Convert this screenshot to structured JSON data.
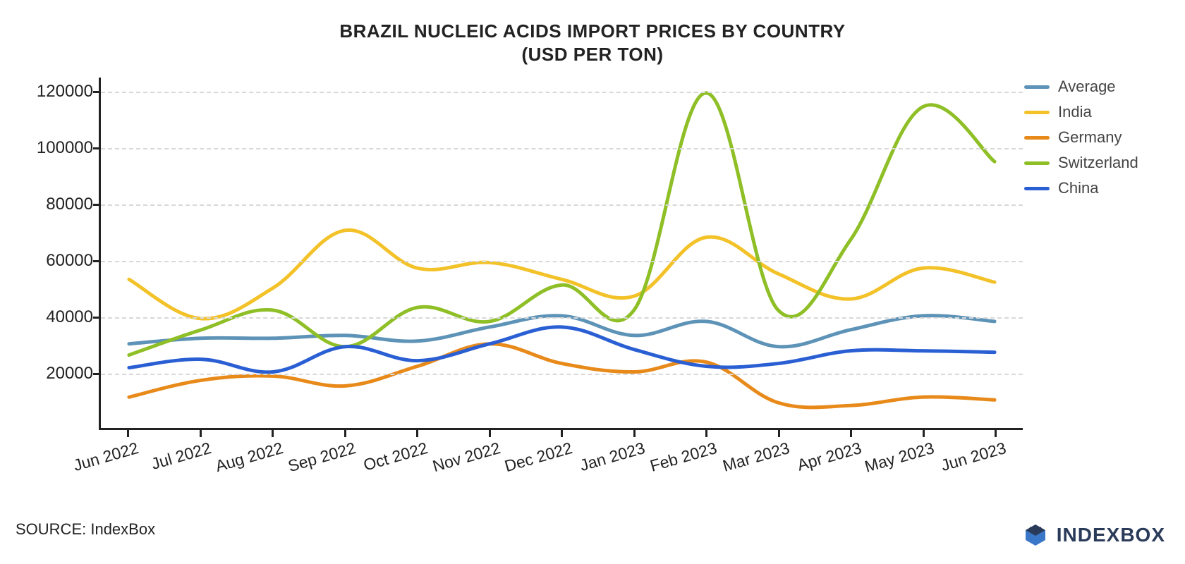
{
  "title_line1": "BRAZIL NUCLEIC ACIDS IMPORT PRICES BY COUNTRY",
  "title_line2": "(USD PER TON)",
  "source_label": "SOURCE: IndexBox",
  "brand_text": "INDEXBOX",
  "chart": {
    "type": "line",
    "background_color": "#ffffff",
    "grid_color": "#d8d8d8",
    "axis_color": "#222222",
    "title_fontsize": 26,
    "label_fontsize": 24,
    "ylim": [
      0,
      125000
    ],
    "yticks": [
      20000,
      40000,
      60000,
      80000,
      100000,
      120000
    ],
    "ytick_labels": [
      "20000",
      "40000",
      "60000",
      "80000",
      "100000",
      "120000"
    ],
    "x_categories": [
      "Jun 2022",
      "Jul 2022",
      "Aug 2022",
      "Sep 2022",
      "Oct 2022",
      "Nov 2022",
      "Dec 2022",
      "Jan 2023",
      "Feb 2023",
      "Mar 2023",
      "Apr 2023",
      "May 2023",
      "Jun 2023"
    ],
    "line_width": 5,
    "series": [
      {
        "name": "Average",
        "color": "#5e93b8",
        "values": [
          30000,
          32000,
          32000,
          33000,
          31000,
          36000,
          40000,
          33000,
          38000,
          29000,
          35000,
          40000,
          38000
        ]
      },
      {
        "name": "India",
        "color": "#f3c128",
        "values": [
          53000,
          39000,
          50000,
          70500,
          57000,
          59000,
          53000,
          47000,
          68000,
          55000,
          46000,
          57000,
          52000
        ]
      },
      {
        "name": "Germany",
        "color": "#e88a1a",
        "values": [
          11000,
          17000,
          18500,
          15000,
          22000,
          30000,
          23000,
          20000,
          23500,
          9000,
          8000,
          11000,
          10000
        ]
      },
      {
        "name": "Switzerland",
        "color": "#8fbf26",
        "values": [
          26000,
          35000,
          42000,
          29000,
          43000,
          38000,
          51000,
          42000,
          119500,
          42000,
          67000,
          114500,
          95000
        ]
      },
      {
        "name": "China",
        "color": "#2a5fd4",
        "values": [
          21500,
          24500,
          20000,
          29000,
          24000,
          30000,
          36000,
          28000,
          22000,
          23000,
          27500,
          27500,
          27000
        ]
      }
    ],
    "legend": {
      "items": [
        "Average",
        "India",
        "Germany",
        "Switzerland",
        "China"
      ],
      "fontsize": 22
    }
  },
  "brand_colors": {
    "logo_dark": "#2a3b5a",
    "logo_accent": "#3a77c9"
  }
}
